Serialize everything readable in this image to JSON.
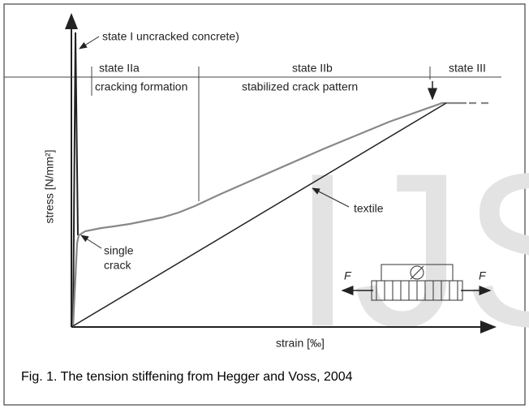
{
  "figure": {
    "watermark": "IJS",
    "labels": {
      "state_i": "state I uncracked concrete)",
      "state_iia": "state IIa",
      "cracking": "cracking formation",
      "state_iib": "state IIb",
      "stabilized": "stabilized crack pattern",
      "state_iii": "state III",
      "y_axis": "stress [N/mm²]",
      "x_axis": "strain [‰]",
      "textile": "textile",
      "single": "single",
      "crack": "crack",
      "force_left": "F",
      "force_right": "F"
    },
    "caption": "Fig. 1. The tension stiffening from Hegger and Voss, 2004"
  }
}
